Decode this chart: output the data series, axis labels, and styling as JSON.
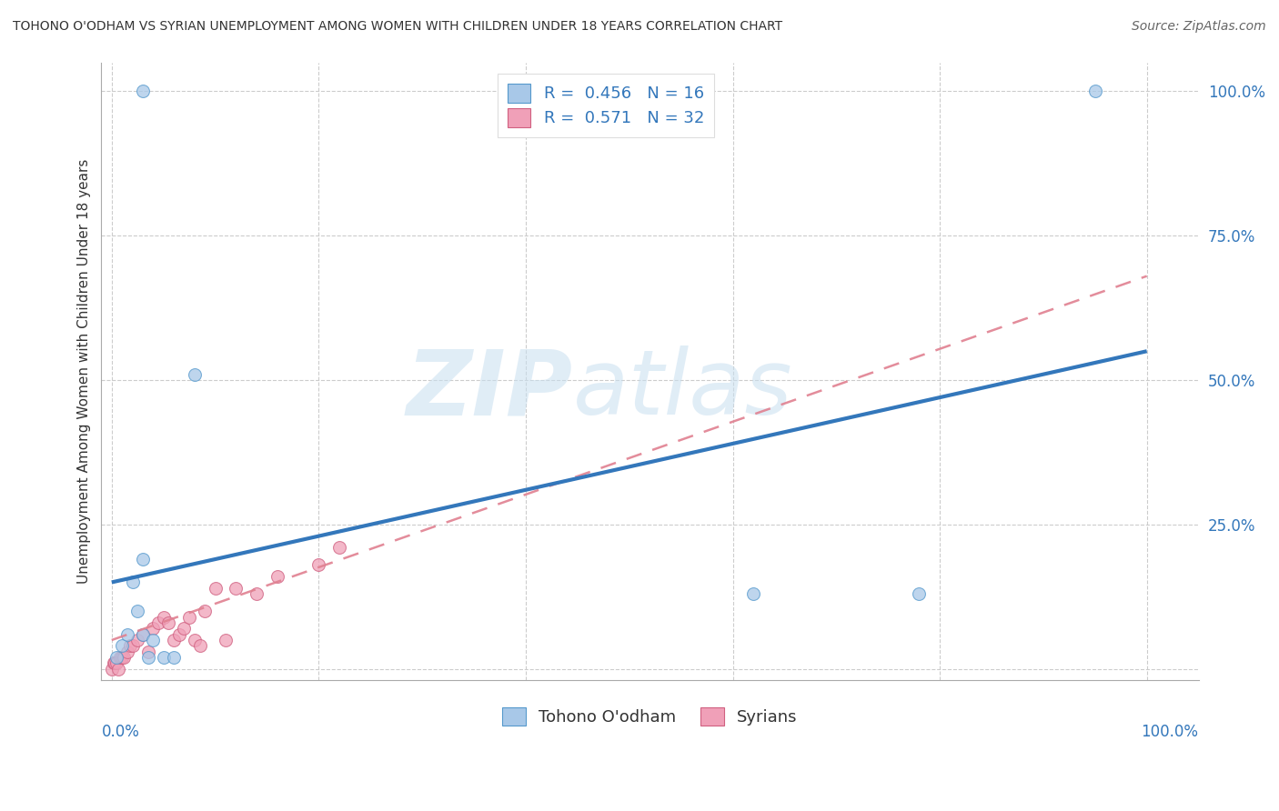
{
  "title": "TOHONO O'ODHAM VS SYRIAN UNEMPLOYMENT AMONG WOMEN WITH CHILDREN UNDER 18 YEARS CORRELATION CHART",
  "source": "Source: ZipAtlas.com",
  "ylabel": "Unemployment Among Women with Children Under 18 years",
  "legend_labels": [
    "Tohono O'odham",
    "Syrians"
  ],
  "watermark_zip": "ZIP",
  "watermark_atlas": "atlas",
  "blue_color": "#a8c8e8",
  "blue_edge_color": "#5599cc",
  "pink_color": "#f0a0b8",
  "pink_edge_color": "#d06080",
  "blue_line_color": "#3377bb",
  "pink_line_color": "#e08090",
  "grid_color": "#cccccc",
  "tohono_x": [
    0.03,
    0.62,
    0.78,
    0.95,
    0.03,
    0.08,
    0.005,
    0.01,
    0.015,
    0.02,
    0.025,
    0.03,
    0.035,
    0.04,
    0.05,
    0.06
  ],
  "tohono_y": [
    1.0,
    0.13,
    0.13,
    1.0,
    0.19,
    0.51,
    0.02,
    0.04,
    0.06,
    0.15,
    0.1,
    0.06,
    0.02,
    0.05,
    0.02,
    0.02
  ],
  "syrian_x": [
    0.0,
    0.002,
    0.003,
    0.005,
    0.006,
    0.008,
    0.01,
    0.012,
    0.015,
    0.018,
    0.02,
    0.025,
    0.03,
    0.035,
    0.04,
    0.045,
    0.05,
    0.055,
    0.06,
    0.065,
    0.07,
    0.075,
    0.08,
    0.085,
    0.09,
    0.1,
    0.11,
    0.12,
    0.14,
    0.16,
    0.2,
    0.22
  ],
  "syrian_y": [
    0.0,
    0.01,
    0.01,
    0.01,
    0.0,
    0.02,
    0.02,
    0.02,
    0.03,
    0.04,
    0.04,
    0.05,
    0.06,
    0.03,
    0.07,
    0.08,
    0.09,
    0.08,
    0.05,
    0.06,
    0.07,
    0.09,
    0.05,
    0.04,
    0.1,
    0.14,
    0.05,
    0.14,
    0.13,
    0.16,
    0.18,
    0.21
  ],
  "blue_trend_x": [
    0.0,
    1.0
  ],
  "blue_trend_y": [
    0.15,
    0.55
  ],
  "pink_trend_x": [
    0.0,
    1.0
  ],
  "pink_trend_y": [
    0.05,
    0.68
  ],
  "ylim": [
    -0.02,
    1.05
  ],
  "xlim": [
    -0.01,
    1.05
  ],
  "yticks": [
    0.0,
    0.25,
    0.5,
    0.75,
    1.0
  ],
  "ytick_labels": [
    "",
    "25.0%",
    "50.0%",
    "75.0%",
    "100.0%"
  ],
  "xtick_positions": [
    0.0,
    0.2,
    0.4,
    0.6,
    0.8,
    1.0
  ],
  "marker_size": 100,
  "title_fontsize": 10,
  "source_fontsize": 10,
  "axis_label_fontsize": 11,
  "tick_fontsize": 12,
  "legend_fontsize": 13
}
